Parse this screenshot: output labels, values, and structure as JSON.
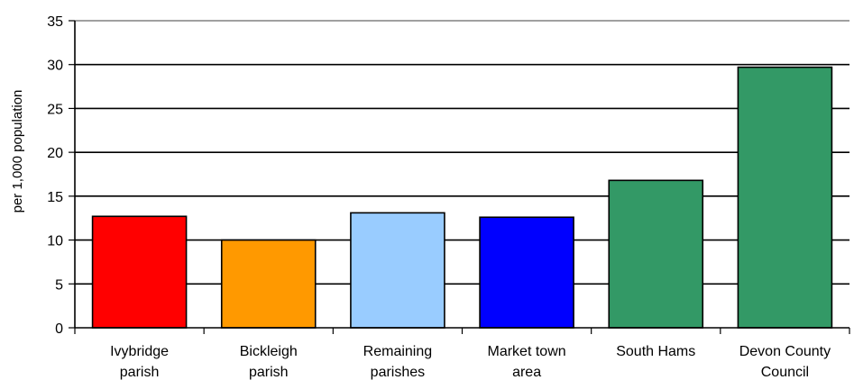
{
  "chart_data": {
    "type": "bar",
    "title": "",
    "xlabel": "",
    "ylabel": "per 1,000 population",
    "ylim": [
      0,
      35
    ],
    "yticks": [
      0,
      5,
      10,
      15,
      20,
      25,
      30,
      35
    ],
    "grid": true,
    "legend": "none",
    "categories": [
      [
        "Ivybridge",
        "parish"
      ],
      [
        "Bickleigh",
        "parish"
      ],
      [
        "Remaining",
        "parishes"
      ],
      [
        "Market town",
        "area"
      ],
      [
        "South Hams"
      ],
      [
        "Devon County",
        "Council"
      ]
    ],
    "values": [
      12.7,
      10.0,
      13.1,
      12.6,
      16.8,
      29.7
    ],
    "bar_colors": [
      "#ff0000",
      "#ff9900",
      "#99ccff",
      "#0000ff",
      "#339966",
      "#339966"
    ]
  }
}
